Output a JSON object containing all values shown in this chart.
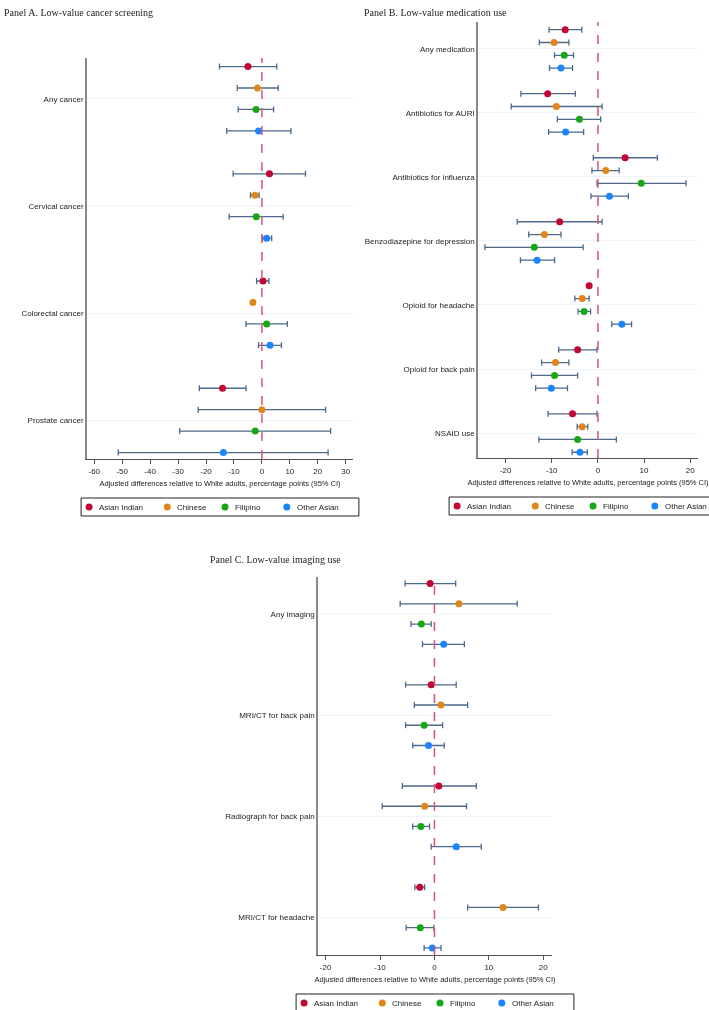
{
  "chart_data": [
    {
      "type": "scatter",
      "orientation": "horizontal",
      "title": "Panel A. Low-value cancer screening",
      "xlabel": "Adjusted differences relative to White adults, percentage points (95% CI)",
      "categories": [
        "Any cancer",
        "Cervical cancer",
        "Colorectal cancer",
        "Prostate cancer"
      ],
      "series": [
        {
          "name": "Asian Indian",
          "color": "#c10534",
          "values": [
            -5.0,
            2.7,
            0.4,
            -14.1
          ],
          "errors": [
            [
              -15.2,
              5.3
            ],
            [
              -10.3,
              15.6
            ],
            [
              -1.9,
              2.5
            ],
            [
              -22.4,
              -5.7
            ]
          ]
        },
        {
          "name": "Chinese",
          "color": "#e0861a",
          "values": [
            -1.6,
            -2.5,
            -3.2,
            0.0
          ],
          "errors": [
            [
              -8.8,
              5.8
            ],
            [
              -4.1,
              -1.0
            ],
            null,
            [
              -22.8,
              22.8
            ]
          ]
        },
        {
          "name": "Filipino",
          "color": "#16a616",
          "values": [
            -2.1,
            -2.0,
            1.7,
            -2.4
          ],
          "errors": [
            [
              -8.5,
              4.2
            ],
            [
              -11.7,
              7.6
            ],
            [
              -5.7,
              9.1
            ],
            [
              -29.4,
              24.6
            ]
          ]
        },
        {
          "name": "Other Asian",
          "color": "#1a85ff",
          "values": [
            -1.2,
            1.7,
            2.9,
            -13.8
          ],
          "errors": [
            [
              -12.6,
              10.4
            ],
            [
              0.2,
              3.5
            ],
            [
              -1.2,
              7.0
            ],
            [
              -51.4,
              23.7
            ]
          ]
        }
      ],
      "xlim": [
        -62.6,
        32.6
      ],
      "xticks": [
        -60,
        -50,
        -40,
        -30,
        -20,
        -10,
        0,
        10,
        20,
        30
      ],
      "ref_lines": [
        {
          "axis": "x",
          "value": 0,
          "color": "#d6547a",
          "line_style": "dashed"
        }
      ],
      "grid": "y",
      "legend": "bottom",
      "marker": "circle"
    },
    {
      "type": "scatter",
      "orientation": "horizontal",
      "title": "Panel B. Low-value medication use",
      "xlabel": "Adjusted differences relative to White adults, percentage points (95% CI)",
      "categories": [
        "Any medication",
        "Antibiotics for AURI",
        "Antibiotics for influenza",
        "Benzodiazepine for depression",
        "Opioid for headache",
        "Opioid for back pain",
        "NSAID use"
      ],
      "series": [
        {
          "name": "Asian Indian",
          "color": "#c10534",
          "values": [
            -7.1,
            -10.9,
            5.9,
            -8.3,
            -1.9,
            -4.4,
            -5.5
          ],
          "errors": [
            [
              -10.6,
              -3.5
            ],
            [
              -16.7,
              -4.9
            ],
            [
              -1.0,
              12.9
            ],
            [
              -17.5,
              0.9
            ],
            null,
            [
              -8.5,
              -0.2
            ],
            [
              -10.8,
              -0.2
            ]
          ]
        },
        {
          "name": "Chinese",
          "color": "#e0861a",
          "values": [
            -9.5,
            -9.0,
            1.7,
            -11.6,
            -3.4,
            -9.2,
            -3.4
          ],
          "errors": [
            [
              -12.7,
              -6.3
            ],
            [
              -18.8,
              0.9
            ],
            [
              -1.3,
              4.6
            ],
            [
              -15.0,
              -8.0
            ],
            [
              -5.0,
              -1.9
            ],
            [
              -12.2,
              -6.3
            ],
            [
              -4.5,
              -2.2
            ]
          ]
        },
        {
          "name": "Filipino",
          "color": "#16a616",
          "values": [
            -7.3,
            -4.0,
            9.4,
            -13.8,
            -3.0,
            -9.4,
            -4.4
          ],
          "errors": [
            [
              -9.4,
              -5.3
            ],
            [
              -8.8,
              0.6
            ],
            [
              -0.2,
              19.1
            ],
            [
              -24.5,
              -3.2
            ],
            [
              -4.3,
              -1.6
            ],
            [
              -14.4,
              -4.4
            ],
            [
              -12.8,
              4.0
            ]
          ]
        },
        {
          "name": "Other Asian",
          "color": "#1a85ff",
          "values": [
            -8.0,
            -7.0,
            2.5,
            -13.2,
            5.2,
            -10.1,
            -3.9
          ],
          "errors": [
            [
              -10.5,
              -5.5
            ],
            [
              -10.7,
              -3.1
            ],
            [
              -1.5,
              6.6
            ],
            [
              -16.8,
              -9.4
            ],
            [
              3.0,
              7.3
            ],
            [
              -13.5,
              -6.6
            ],
            [
              -5.6,
              -2.3
            ]
          ]
        }
      ],
      "xlim": [
        -26.0,
        21.7
      ],
      "xticks": [
        -20,
        -10,
        0,
        10,
        20
      ],
      "ref_lines": [
        {
          "axis": "x",
          "value": 0,
          "color": "#d6547a",
          "line_style": "dashed"
        }
      ],
      "grid": "y",
      "legend": "bottom",
      "marker": "circle"
    },
    {
      "type": "scatter",
      "orientation": "horizontal",
      "title": "Panel C. Low-value imaging use",
      "xlabel": "Adjusted differences relative to White adults, percentage points (95% CI)",
      "categories": [
        "Any imaging",
        "MRI/CT for back pain",
        "Radiograph for back pain",
        "MRI/CT for headache"
      ],
      "series": [
        {
          "name": "Asian Indian",
          "color": "#c10534",
          "values": [
            -0.8,
            -0.6,
            0.8,
            -2.7
          ],
          "errors": [
            [
              -5.4,
              3.9
            ],
            [
              -5.3,
              4.0
            ],
            [
              -5.9,
              7.7
            ],
            [
              -3.6,
              -1.8
            ]
          ]
        },
        {
          "name": "Chinese",
          "color": "#e0861a",
          "values": [
            4.5,
            1.2,
            -1.8,
            12.6
          ],
          "errors": [
            [
              -6.3,
              15.2
            ],
            [
              -3.7,
              6.1
            ],
            [
              -9.6,
              5.9
            ],
            [
              6.1,
              19.1
            ]
          ]
        },
        {
          "name": "Filipino",
          "color": "#16a616",
          "values": [
            -2.4,
            -1.9,
            -2.5,
            -2.6
          ],
          "errors": [
            [
              -4.3,
              -0.6
            ],
            [
              -5.3,
              1.5
            ],
            [
              -4.0,
              -0.9
            ],
            [
              -5.2,
              -0.1
            ]
          ]
        },
        {
          "name": "Other Asian",
          "color": "#1a85ff",
          "values": [
            1.7,
            -1.1,
            4.0,
            -0.4
          ],
          "errors": [
            [
              -2.2,
              5.5
            ],
            [
              -4.0,
              1.8
            ],
            [
              -0.6,
              8.6
            ],
            [
              -1.9,
              1.2
            ]
          ]
        }
      ],
      "xlim": [
        -21.4,
        21.6
      ],
      "xticks": [
        -20,
        -10,
        0,
        10,
        20
      ],
      "ref_lines": [
        {
          "axis": "x",
          "value": 0,
          "color": "#d6547a",
          "line_style": "dashed"
        }
      ],
      "grid": "y",
      "legend": "bottom",
      "marker": "circle"
    }
  ]
}
